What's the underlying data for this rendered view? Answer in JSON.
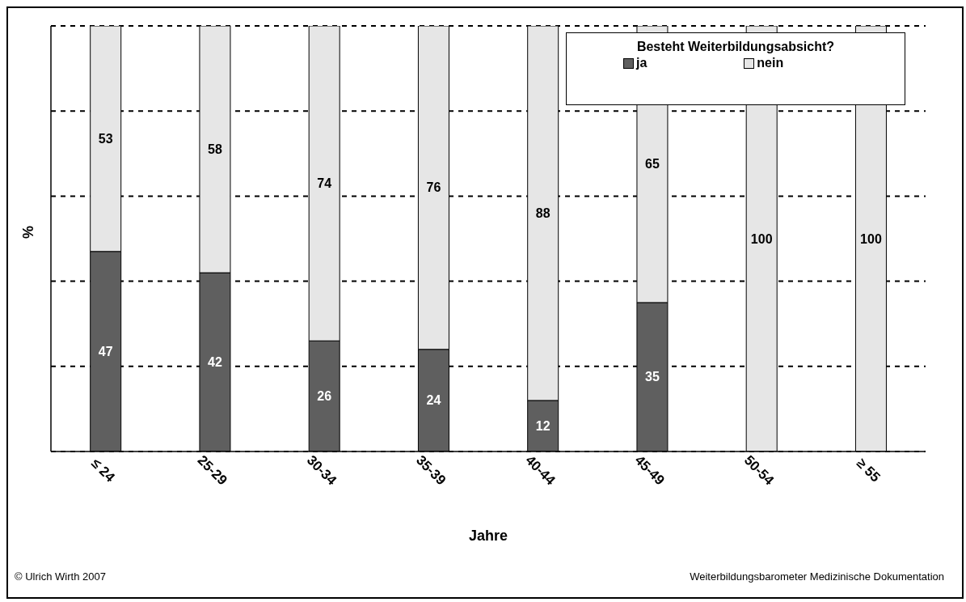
{
  "chart_data": {
    "type": "bar",
    "stacked": true,
    "xlabel": "Jahre",
    "ylabel": "%",
    "legend_title": "Besteht Weiterbildungsabsicht?",
    "legend": "top right",
    "grid": "y",
    "categories": [
      "≤ 24",
      "25-29",
      "30-34",
      "35-39",
      "40-44",
      "45-49",
      "50-54",
      "≥ 55"
    ],
    "ylim": [
      0,
      100
    ],
    "yticks": [
      {
        "value": 0,
        "label": null
      },
      {
        "value": 20,
        "label": null
      },
      {
        "value": 40,
        "label": null
      },
      {
        "value": 60,
        "label": null
      },
      {
        "value": 80,
        "label": null
      },
      {
        "value": 100,
        "label": null
      }
    ],
    "series": [
      {
        "name": "ja",
        "color": "#5f5f5f",
        "values": [
          47,
          42,
          26,
          24,
          12,
          35,
          0,
          0
        ],
        "value_labels": [
          "47",
          "42",
          "26",
          "24",
          "12",
          "35",
          null,
          null
        ]
      },
      {
        "name": "nein",
        "color": "#e6e6e6",
        "values": [
          53,
          58,
          74,
          76,
          88,
          65,
          100,
          100
        ],
        "value_labels": [
          "53",
          "58",
          "74",
          "76",
          "88",
          "65",
          "100",
          "100"
        ]
      }
    ],
    "annotations": [
      "© Ulrich Wirth 2007",
      "Weiterbildungsbarometer Medizinische Dokumentation"
    ]
  }
}
